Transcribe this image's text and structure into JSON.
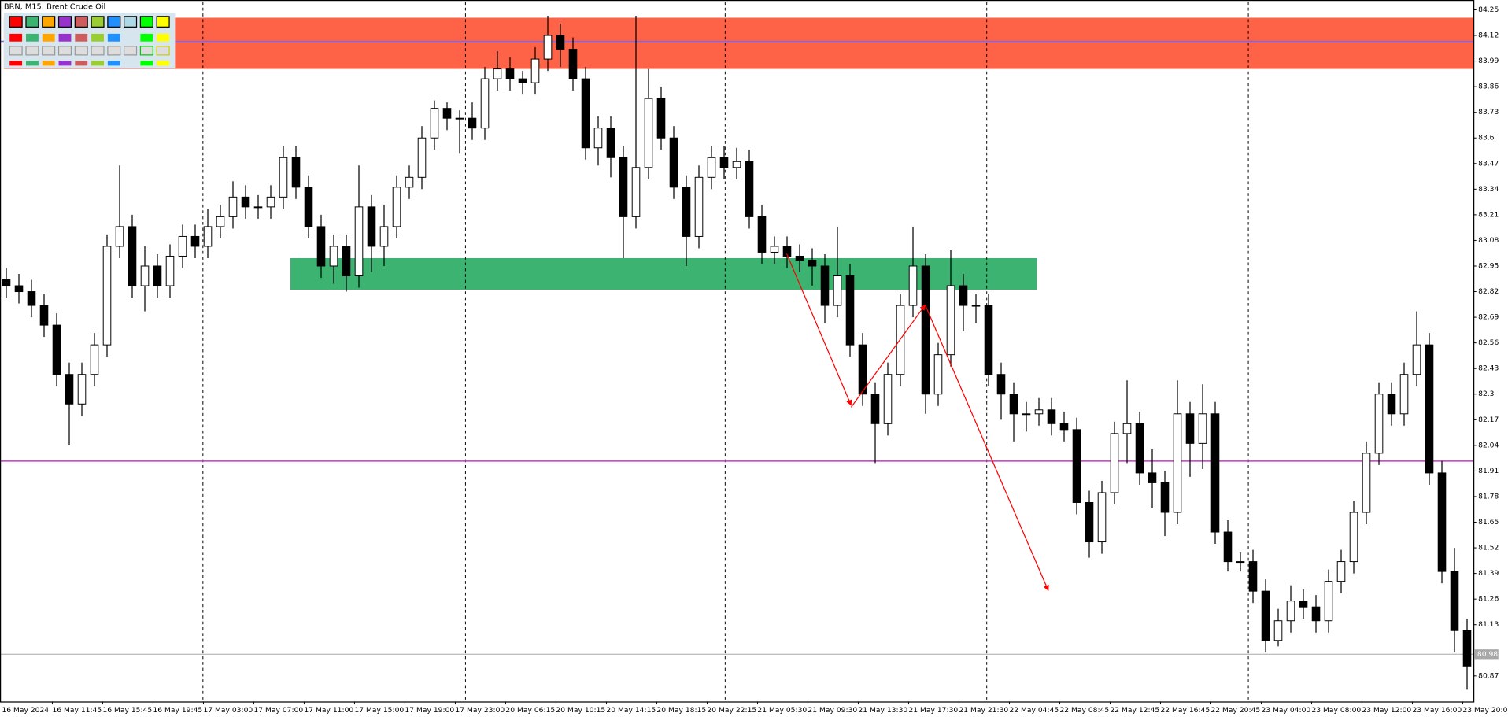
{
  "chart_data": {
    "type": "candlestick",
    "title": "BRN, M15:  Brent Crude Oil",
    "open": [
      82.88,
      82.85,
      82.82,
      82.75,
      82.65,
      82.4,
      82.25,
      82.4,
      82.55,
      83.05,
      83.15,
      82.85,
      82.95,
      82.85,
      83.0,
      83.1,
      83.05,
      83.15,
      83.2,
      83.3,
      83.25,
      83.25,
      83.3,
      83.5,
      83.35,
      83.15,
      82.95,
      83.05,
      82.9,
      83.25,
      83.05,
      83.15,
      83.35,
      83.4,
      83.6,
      83.75,
      83.7,
      83.7,
      83.65,
      83.9,
      83.95,
      83.9,
      83.88,
      84.0,
      84.12,
      84.05,
      83.9,
      83.55,
      83.65,
      83.5,
      83.2,
      83.45,
      83.8,
      83.6,
      83.35,
      83.1,
      83.4,
      83.5,
      83.45,
      83.48,
      83.2,
      83.02,
      83.05,
      83.0,
      82.98,
      82.95,
      82.75,
      82.9,
      82.55,
      82.3,
      82.15,
      82.4,
      82.75,
      82.95,
      82.3,
      82.5,
      82.85,
      82.75,
      82.75,
      82.4,
      82.3,
      82.2,
      82.2,
      82.22,
      82.15,
      82.12,
      81.75,
      81.55,
      81.8,
      82.1,
      82.15,
      81.9,
      81.85,
      81.7,
      82.2,
      82.05,
      82.2,
      81.6,
      81.45,
      81.45,
      81.3,
      81.05,
      81.15,
      81.25,
      81.22,
      81.15,
      81.35,
      81.45,
      81.7,
      82.0,
      82.3,
      82.2,
      82.4,
      82.55,
      81.9,
      81.4,
      81.1
    ],
    "high": [
      82.94,
      82.91,
      82.88,
      82.81,
      82.71,
      82.46,
      82.46,
      82.61,
      83.11,
      83.46,
      83.21,
      83.05,
      83.01,
      83.06,
      83.16,
      83.16,
      83.24,
      83.26,
      83.38,
      83.36,
      83.31,
      83.36,
      83.56,
      83.56,
      83.41,
      83.21,
      83.11,
      83.11,
      83.46,
      83.31,
      83.26,
      83.41,
      83.46,
      83.66,
      83.79,
      83.78,
      83.74,
      83.78,
      83.96,
      84.04,
      84.01,
      83.94,
      84.06,
      84.22,
      84.18,
      84.11,
      83.96,
      83.71,
      83.71,
      83.56,
      84.22,
      83.95,
      83.86,
      83.66,
      83.41,
      83.46,
      83.56,
      83.56,
      83.55,
      83.54,
      83.26,
      83.1,
      83.1,
      83.06,
      83.04,
      83.01,
      83.15,
      82.96,
      82.61,
      82.36,
      82.46,
      82.81,
      83.15,
      83.01,
      82.56,
      83.03,
      82.91,
      82.81,
      82.81,
      82.46,
      82.36,
      82.26,
      82.28,
      82.28,
      82.21,
      82.18,
      81.81,
      81.86,
      82.16,
      82.37,
      82.21,
      82.02,
      81.91,
      82.37,
      82.26,
      82.35,
      82.26,
      81.66,
      81.5,
      81.51,
      81.36,
      81.21,
      81.33,
      81.31,
      81.28,
      81.41,
      81.51,
      81.76,
      82.06,
      82.36,
      82.36,
      82.46,
      82.72,
      82.61,
      81.96,
      81.52,
      81.16
    ],
    "low": [
      82.79,
      82.76,
      82.69,
      82.59,
      82.34,
      82.04,
      82.19,
      82.34,
      82.49,
      82.99,
      82.79,
      82.72,
      82.79,
      82.79,
      82.94,
      82.99,
      82.99,
      83.09,
      83.14,
      83.19,
      83.19,
      83.19,
      83.24,
      83.29,
      83.09,
      82.89,
      82.86,
      82.82,
      82.84,
      82.92,
      82.95,
      83.09,
      83.29,
      83.34,
      83.54,
      83.64,
      83.52,
      83.59,
      83.59,
      83.84,
      83.84,
      83.82,
      83.82,
      83.94,
      83.96,
      83.84,
      83.49,
      83.46,
      83.4,
      82.99,
      83.14,
      83.39,
      83.54,
      83.29,
      82.95,
      83.04,
      83.34,
      83.39,
      83.39,
      83.14,
      82.96,
      82.96,
      82.94,
      82.92,
      82.85,
      82.66,
      82.69,
      82.49,
      82.24,
      81.95,
      82.09,
      82.34,
      82.69,
      82.2,
      82.24,
      82.44,
      82.62,
      82.66,
      82.34,
      82.17,
      82.06,
      82.11,
      82.14,
      82.09,
      82.06,
      81.69,
      81.47,
      81.49,
      81.74,
      81.95,
      81.84,
      81.72,
      81.58,
      81.64,
      81.88,
      81.92,
      81.54,
      81.4,
      81.4,
      81.24,
      80.99,
      81.02,
      81.09,
      81.16,
      81.09,
      81.09,
      81.29,
      81.39,
      81.64,
      81.94,
      82.14,
      82.14,
      82.34,
      81.84,
      81.34,
      80.99,
      80.8
    ],
    "close": [
      82.85,
      82.82,
      82.75,
      82.65,
      82.4,
      82.25,
      82.4,
      82.55,
      83.05,
      83.15,
      82.85,
      82.95,
      82.85,
      83.0,
      83.1,
      83.05,
      83.15,
      83.2,
      83.3,
      83.25,
      83.25,
      83.3,
      83.5,
      83.35,
      83.15,
      82.95,
      83.05,
      82.9,
      83.25,
      83.05,
      83.15,
      83.35,
      83.4,
      83.6,
      83.75,
      83.7,
      83.7,
      83.65,
      83.9,
      83.95,
      83.9,
      83.88,
      84.0,
      84.12,
      84.05,
      83.9,
      83.55,
      83.65,
      83.5,
      83.2,
      83.45,
      83.8,
      83.6,
      83.35,
      83.1,
      83.4,
      83.5,
      83.45,
      83.48,
      83.2,
      83.02,
      83.05,
      83.0,
      82.98,
      82.95,
      82.75,
      82.9,
      82.55,
      82.3,
      82.15,
      82.4,
      82.75,
      82.95,
      82.3,
      82.5,
      82.85,
      82.75,
      82.75,
      82.4,
      82.3,
      82.2,
      82.2,
      82.22,
      82.15,
      82.12,
      81.75,
      81.55,
      81.8,
      82.1,
      82.15,
      81.9,
      81.85,
      81.7,
      82.2,
      82.05,
      82.2,
      81.6,
      81.45,
      81.45,
      81.3,
      81.05,
      81.15,
      81.25,
      81.22,
      81.15,
      81.35,
      81.45,
      81.7,
      82.0,
      82.3,
      82.2,
      82.4,
      82.55,
      81.9,
      81.4,
      81.1,
      80.92
    ],
    "up_color": "#ffffff",
    "down_color": "#000000",
    "xlim": [
      -0.5,
      116.5
    ],
    "xticks": [
      {
        "value": 0,
        "label": "16 May 2024"
      },
      {
        "value": 4,
        "label": "16 May 11:45"
      },
      {
        "value": 8,
        "label": "16 May 15:45"
      },
      {
        "value": 12,
        "label": "16 May 19:45"
      },
      {
        "value": 16,
        "label": "17 May 03:00"
      },
      {
        "value": 20,
        "label": "17 May 07:00"
      },
      {
        "value": 24,
        "label": "17 May 11:00"
      },
      {
        "value": 28,
        "label": "17 May 15:00"
      },
      {
        "value": 32,
        "label": "17 May 19:00"
      },
      {
        "value": 36,
        "label": "17 May 23:00"
      },
      {
        "value": 40,
        "label": "20 May 06:15"
      },
      {
        "value": 44,
        "label": "20 May 10:15"
      },
      {
        "value": 48,
        "label": "20 May 14:15"
      },
      {
        "value": 52,
        "label": "20 May 18:15"
      },
      {
        "value": 56,
        "label": "20 May 22:15"
      },
      {
        "value": 60,
        "label": "21 May 05:30"
      },
      {
        "value": 64,
        "label": "21 May 09:30"
      },
      {
        "value": 68,
        "label": "21 May 13:30"
      },
      {
        "value": 72,
        "label": "21 May 17:30"
      },
      {
        "value": 76,
        "label": "21 May 21:30"
      },
      {
        "value": 80,
        "label": "22 May 04:45"
      },
      {
        "value": 84,
        "label": "22 May 08:45"
      },
      {
        "value": 88,
        "label": "22 May 12:45"
      },
      {
        "value": 92,
        "label": "22 May 16:45"
      },
      {
        "value": 96,
        "label": "22 May 20:45"
      },
      {
        "value": 100,
        "label": "23 May 04:00"
      },
      {
        "value": 104,
        "label": "23 May 08:00"
      },
      {
        "value": 108,
        "label": "23 May 12:00"
      },
      {
        "value": 112,
        "label": "23 May 16:00"
      },
      {
        "value": 116,
        "label": "23 May 20:00"
      }
    ],
    "ylim": [
      80.74,
      84.29
    ],
    "yticks": [
      84.25,
      84.12,
      83.99,
      83.86,
      83.73,
      83.6,
      83.47,
      83.34,
      83.21,
      83.08,
      82.95,
      82.82,
      82.69,
      82.56,
      82.43,
      82.3,
      82.17,
      82.04,
      81.91,
      81.78,
      81.65,
      81.52,
      81.39,
      81.26,
      81.13,
      80.87
    ],
    "zones": [
      {
        "low": 83.95,
        "high": 84.21,
        "color": "#ff6347"
      },
      {
        "low": 82.83,
        "high": 82.99,
        "color": "#3cb371"
      }
    ],
    "hlines": [
      {
        "value": 84.09,
        "color": "#7b68ee"
      },
      {
        "value": 81.96,
        "color": "#cc33cc"
      }
    ],
    "current_price": {
      "value": 80.98,
      "color": "#a8a8a8"
    }
  }
}
